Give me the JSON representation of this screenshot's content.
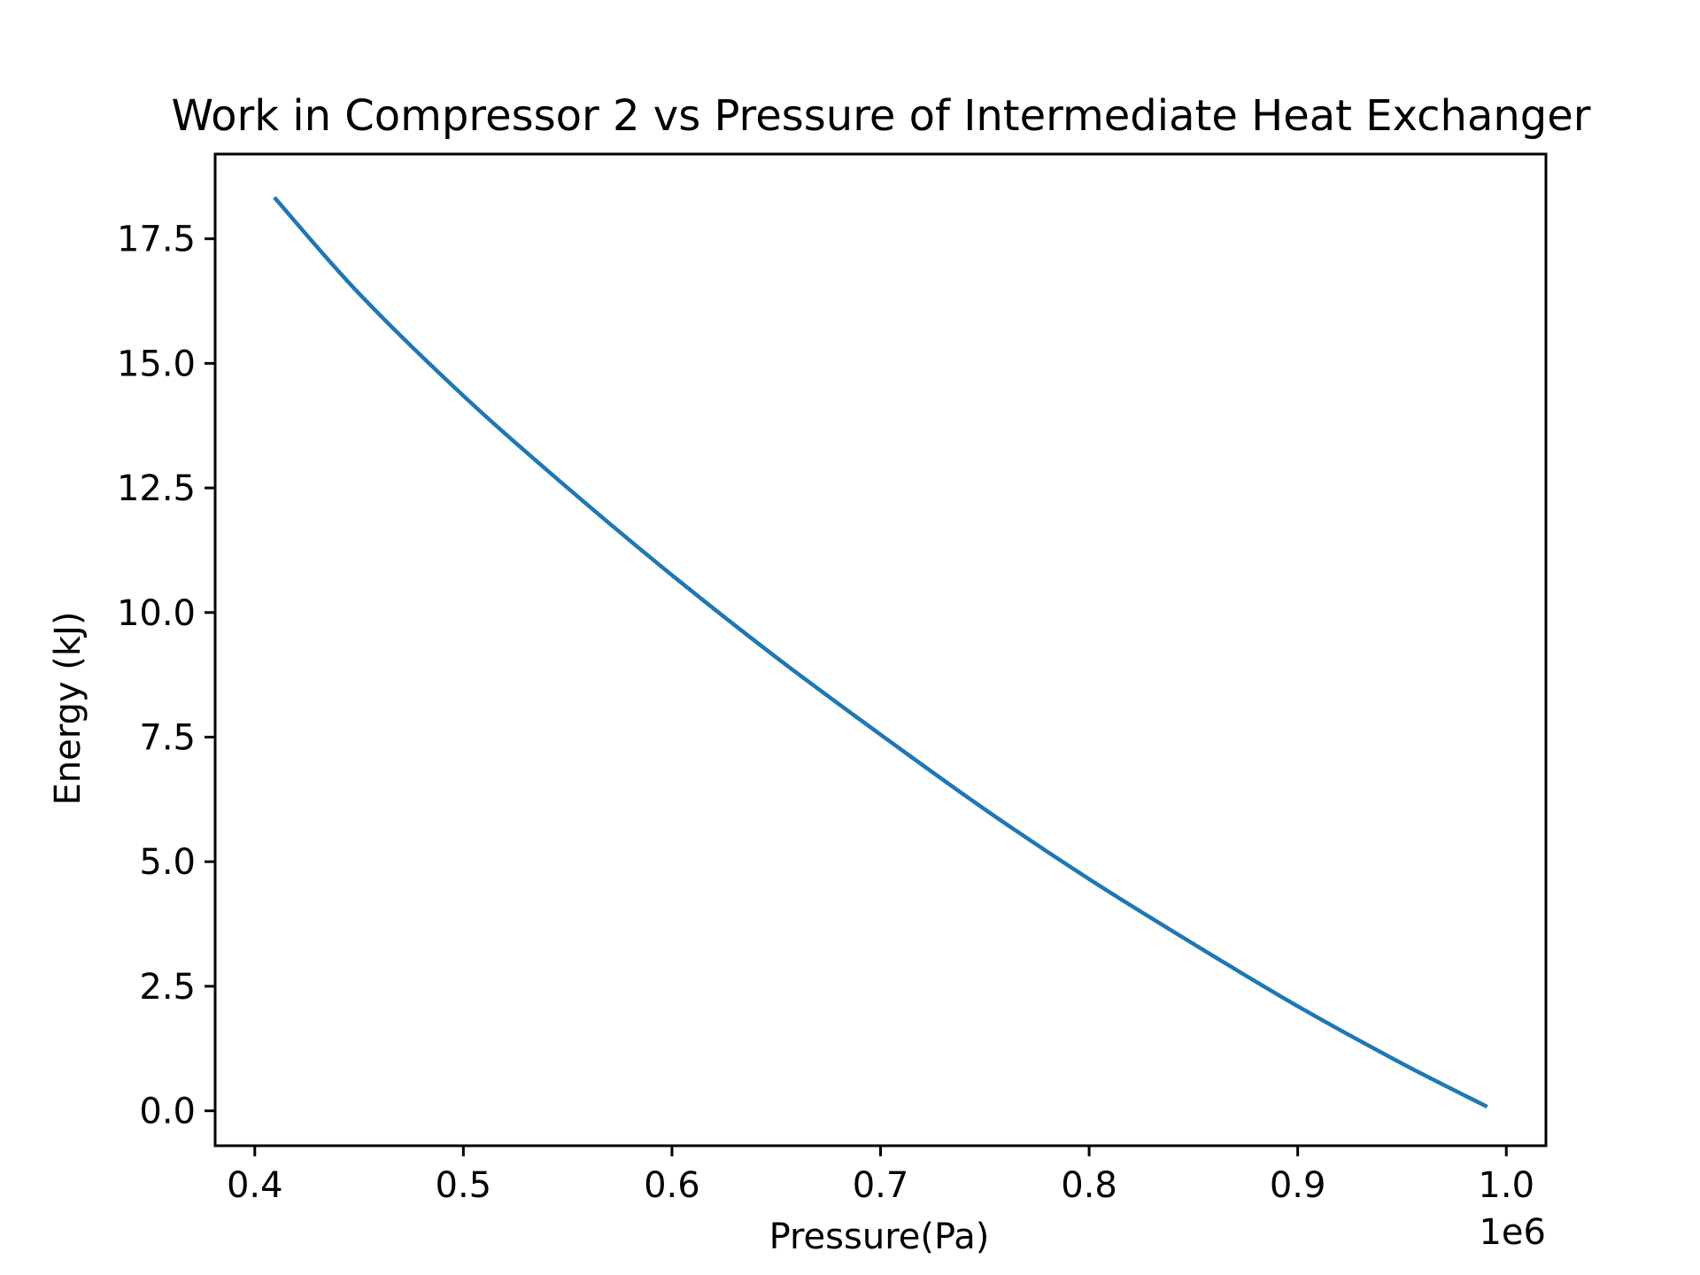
{
  "colors": {
    "line": "#1f77b4",
    "axis": "#000000",
    "background": "#ffffff"
  },
  "chart_data": {
    "type": "line",
    "title": "Work in Compressor 2 vs Pressure of Intermediate Heat Exchanger",
    "xlabel": "Pressure(Pa)",
    "ylabel": "Energy (kJ)",
    "x_offset_label": "1e6",
    "xlim": [
      381000,
      1019000
    ],
    "ylim": [
      -0.7,
      19.2
    ],
    "x_ticks": [
      400000,
      500000,
      600000,
      700000,
      800000,
      900000,
      1000000
    ],
    "x_tick_labels": [
      "0.4",
      "0.5",
      "0.6",
      "0.7",
      "0.8",
      "0.9",
      "1.0"
    ],
    "y_ticks": [
      0,
      2.5,
      5,
      7.5,
      10,
      12.5,
      15,
      17.5
    ],
    "y_tick_labels": [
      "0.0",
      "2.5",
      "5.0",
      "7.5",
      "10.0",
      "12.5",
      "15.0",
      "17.5"
    ],
    "grid": false,
    "series": [
      {
        "x": [
          410000,
          450000,
          500000,
          550000,
          600000,
          650000,
          700000,
          750000,
          800000,
          850000,
          900000,
          950000,
          990000
        ],
        "y": [
          18.3,
          16.4,
          14.35,
          12.5,
          10.75,
          9.1,
          7.55,
          6.05,
          4.65,
          3.35,
          2.1,
          0.95,
          0.1
        ]
      }
    ]
  }
}
